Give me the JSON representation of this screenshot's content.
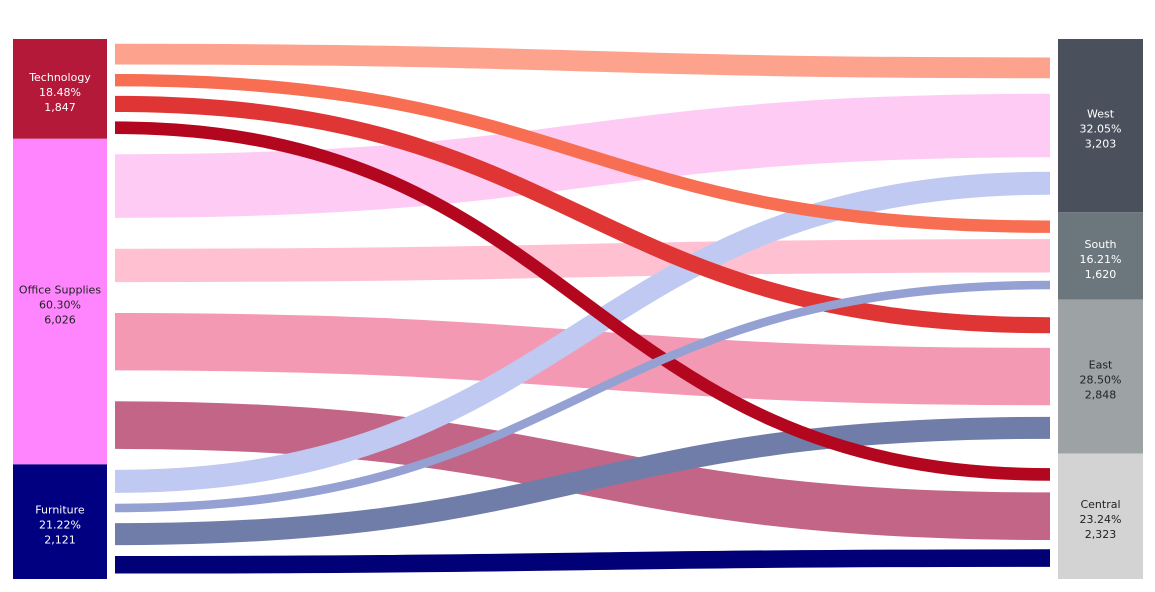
{
  "chart_data": {
    "type": "sankey",
    "title": "",
    "sources": [
      {
        "name": "Technology",
        "pct": "18.48%",
        "count": "1,847",
        "value": 1847,
        "color": "#b5193a",
        "text_color": "#ffffff"
      },
      {
        "name": "Office Supplies",
        "pct": "60.30%",
        "count": "6,026",
        "value": 6026,
        "color": "#ff85ff",
        "text_color": "#222222"
      },
      {
        "name": "Furniture",
        "pct": "21.22%",
        "count": "2,121",
        "value": 2121,
        "color": "#000080",
        "text_color": "#ffffff"
      }
    ],
    "targets": [
      {
        "name": "West",
        "pct": "32.05%",
        "count": "3,203",
        "value": 3203,
        "color": "#4b515c",
        "text_color": "#ffffff"
      },
      {
        "name": "South",
        "pct": "16.21%",
        "count": "1,620",
        "value": 1620,
        "color": "#6c777d",
        "text_color": "#ffffff"
      },
      {
        "name": "East",
        "pct": "28.50%",
        "count": "2,848",
        "value": 2848,
        "color": "#9da3a4",
        "text_color": "#222222"
      },
      {
        "name": "Central",
        "pct": "23.24%",
        "count": "2,323",
        "value": 2323,
        "color": "#d3d3d3",
        "text_color": "#222222"
      }
    ],
    "flows": [
      {
        "source": "Technology",
        "target": "West",
        "value": 620,
        "color": "#fda28d"
      },
      {
        "source": "Technology",
        "target": "South",
        "value": 370,
        "color": "#f86e53"
      },
      {
        "source": "Technology",
        "target": "East",
        "value": 480,
        "color": "#df3535"
      },
      {
        "source": "Technology",
        "target": "Central",
        "value": 377,
        "color": "#b3071f"
      },
      {
        "source": "Office Supplies",
        "target": "West",
        "value": 1897,
        "color": "#fecbf4"
      },
      {
        "source": "Office Supplies",
        "target": "South",
        "value": 995,
        "color": "#ffc1d2"
      },
      {
        "source": "Office Supplies",
        "target": "East",
        "value": 1712,
        "color": "#f499b3"
      },
      {
        "source": "Office Supplies",
        "target": "Central",
        "value": 1422,
        "color": "#c36586"
      },
      {
        "source": "Furniture",
        "target": "West",
        "value": 686,
        "color": "#bfc9f2"
      },
      {
        "source": "Furniture",
        "target": "South",
        "value": 255,
        "color": "#95a0d3"
      },
      {
        "source": "Furniture",
        "target": "East",
        "value": 656,
        "color": "#717da9"
      },
      {
        "source": "Furniture",
        "target": "Central",
        "value": 524,
        "color": "#010077"
      }
    ]
  }
}
